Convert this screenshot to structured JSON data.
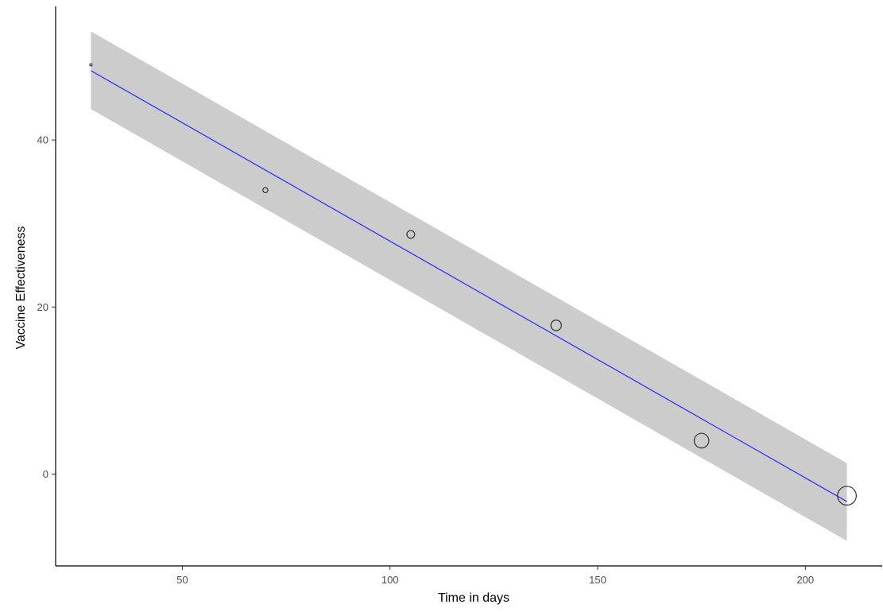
{
  "chart_data": {
    "type": "scatter",
    "xlabel": "Time in days",
    "ylabel": "Vaccine Effectiveness",
    "xlim": [
      19.5,
      218.5
    ],
    "ylim": [
      -11,
      56
    ],
    "x_ticks": [
      50,
      100,
      150,
      200
    ],
    "y_ticks": [
      0,
      20,
      40
    ],
    "grid": false,
    "legend": "none",
    "points": [
      {
        "x": 28,
        "y": 49,
        "weight": 1
      },
      {
        "x": 70,
        "y": 34,
        "weight": 2
      },
      {
        "x": 105,
        "y": 28.7,
        "weight": 3
      },
      {
        "x": 140,
        "y": 17.8,
        "weight": 4
      },
      {
        "x": 175,
        "y": 4,
        "weight": 5
      },
      {
        "x": 210,
        "y": -2.6,
        "weight": 6
      }
    ],
    "fit": {
      "type": "linear",
      "x": [
        28,
        210
      ],
      "y": [
        48.3,
        -3.3
      ],
      "ci_upper": [
        53,
        1.3
      ],
      "ci_lower": [
        43.7,
        -8
      ]
    },
    "colors": {
      "fit_line": "#3333ff",
      "ci_band": "#cccccc",
      "point_stroke": "#333333",
      "axis": "#000000",
      "tick_text": "#4d4d4d"
    }
  }
}
